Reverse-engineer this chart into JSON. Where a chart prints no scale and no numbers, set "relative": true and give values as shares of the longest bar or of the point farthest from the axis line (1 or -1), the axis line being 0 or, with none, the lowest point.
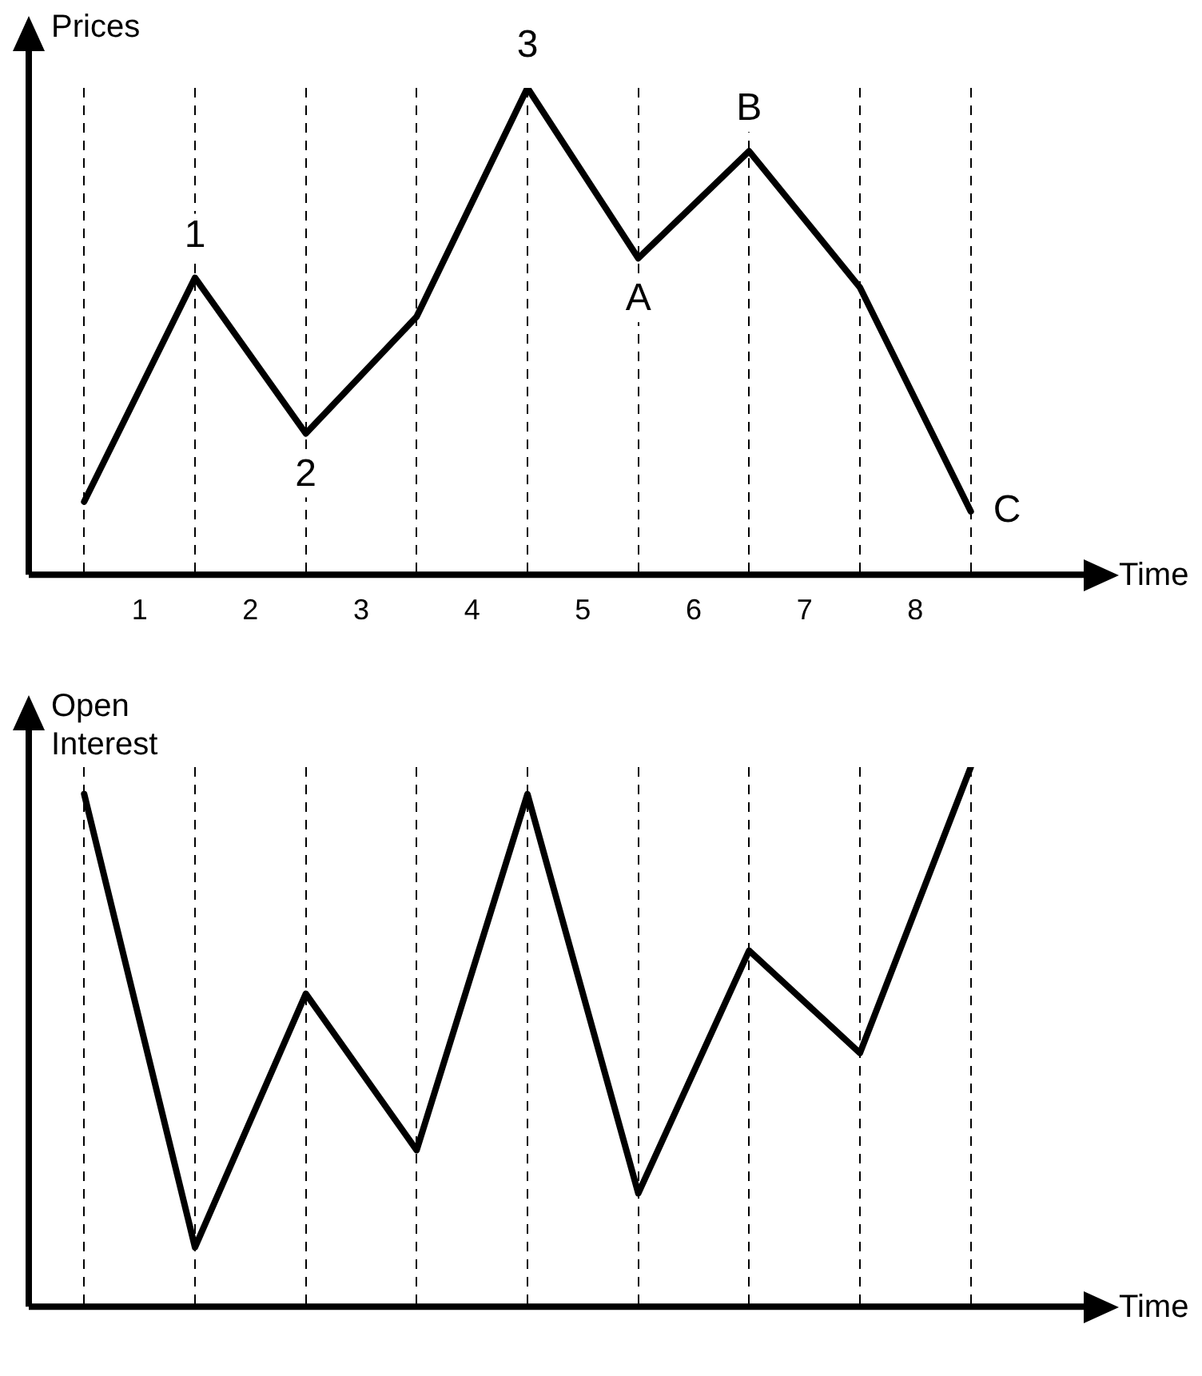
{
  "chart_data": [
    {
      "type": "line",
      "ylabel": "Prices",
      "xlabel": "Time",
      "relative": true,
      "categories": [
        null,
        null,
        null,
        null,
        null,
        null,
        null,
        null,
        null
      ],
      "series": [
        {
          "color": "#000000",
          "values": [
            0.15,
            0.61,
            0.29,
            0.53,
            1,
            0.65,
            0.87,
            0.59,
            0.13
          ]
        }
      ],
      "annotations": [
        "1",
        "2",
        "3",
        "4",
        "5",
        "6",
        "7",
        "8",
        {
          "text": "1",
          "y": 0.61
        },
        {
          "text": "2",
          "y": 0.29
        },
        {
          "text": "3",
          "y": 1
        },
        {
          "text": "A",
          "y": 0.65
        },
        {
          "text": "B",
          "y": 0.87
        },
        {
          "text": "C",
          "y": 0.13
        }
      ],
      "grid": "x",
      "legend": false,
      "marker": "none",
      "line_style": "solid"
    },
    {
      "type": "line",
      "ylabel": "Open Interest",
      "xlabel": "Time",
      "relative": true,
      "categories": [
        null,
        null,
        null,
        null,
        null,
        null,
        null,
        null,
        null
      ],
      "series": [
        {
          "color": "#000000",
          "values": [
            0.95,
            0.11,
            0.58,
            0.29,
            0.95,
            0.21,
            0.66,
            0.47,
            1
          ]
        }
      ],
      "grid": "x",
      "legend": false,
      "marker": "none",
      "line_style": "solid"
    }
  ]
}
